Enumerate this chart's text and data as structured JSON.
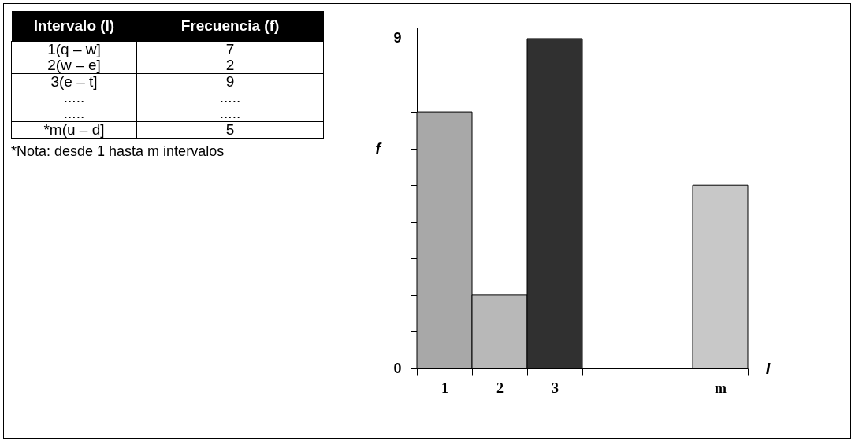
{
  "chart_data": [
    {
      "type": "other",
      "annotations": [
        "Intervalo (I)",
        "Frecuencia (f)",
        "1(q – w]",
        "7",
        "2(w – e]",
        "2",
        "3(e – t]",
        "9",
        ".....",
        ".....",
        ".....",
        ".....",
        "*m(u – d]",
        "5",
        "*Nota: desde 1 hasta m intervalos"
      ]
    },
    {
      "type": "bar",
      "categories": [
        "1",
        "2",
        "3",
        null,
        null,
        "m"
      ],
      "values": [
        7,
        2,
        9,
        null,
        null,
        5
      ],
      "colors": [
        "#a8a8a8",
        "#b8b8b8",
        "#303030",
        null,
        null,
        "#c8c8c8"
      ],
      "xlabel": "I",
      "ylabel": "f",
      "ylim": [
        0,
        9.3
      ],
      "yticks": [
        0,
        {
          "value": 1,
          "label": null
        },
        {
          "value": 2,
          "label": null
        },
        {
          "value": 3,
          "label": null
        },
        {
          "value": 4,
          "label": null
        },
        {
          "value": 5,
          "label": null
        },
        {
          "value": 6,
          "label": null
        },
        {
          "value": 7,
          "label": null
        },
        {
          "value": 8,
          "label": null
        },
        9
      ]
    }
  ]
}
